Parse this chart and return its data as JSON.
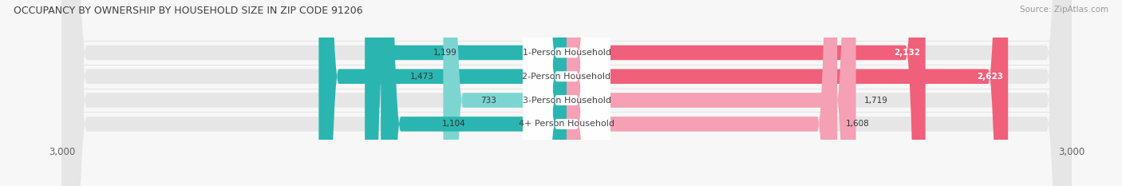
{
  "title": "OCCUPANCY BY OWNERSHIP BY HOUSEHOLD SIZE IN ZIP CODE 91206",
  "source": "Source: ZipAtlas.com",
  "categories": [
    "1-Person Household",
    "2-Person Household",
    "3-Person Household",
    "4+ Person Household"
  ],
  "owner_values": [
    1199,
    1473,
    733,
    1104
  ],
  "renter_values": [
    2132,
    2623,
    1719,
    1608
  ],
  "owner_color_strong": "#2bb5b0",
  "owner_color_light": "#7dd5d2",
  "renter_color_strong": "#f0607a",
  "renter_color_light": "#f5a0b5",
  "axis_max": 3000,
  "bar_bg_color": "#e6e6e6",
  "bg_color": "#f7f7f7",
  "title_color": "#404040",
  "bar_height": 0.62
}
